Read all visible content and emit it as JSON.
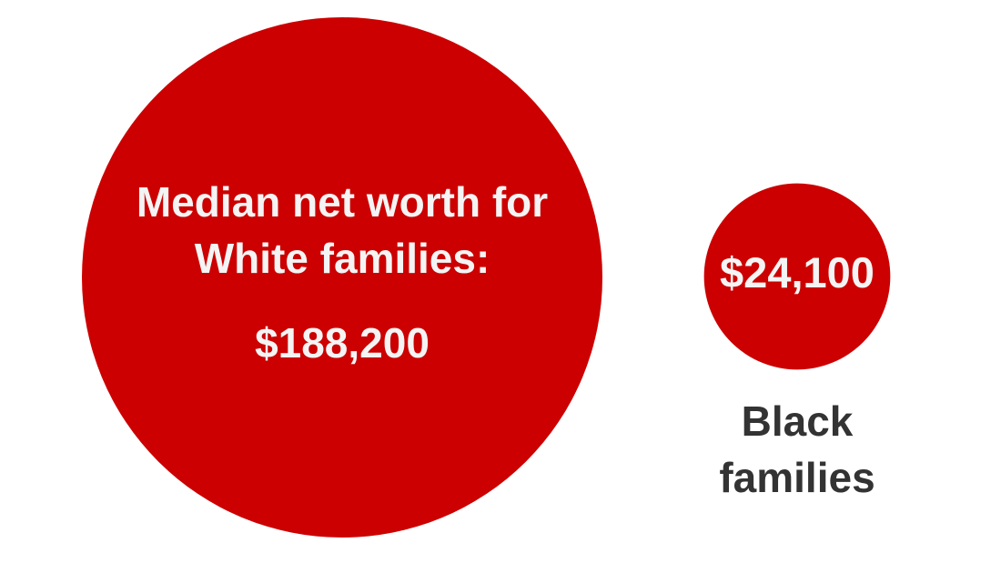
{
  "chart_data": {
    "type": "bubble",
    "categories": [
      "Median net worth for White families:",
      "Black families"
    ],
    "values": [
      188200,
      24100
    ],
    "value_labels": [
      "$188,200",
      "$24,100"
    ],
    "color": "#cc0000"
  }
}
